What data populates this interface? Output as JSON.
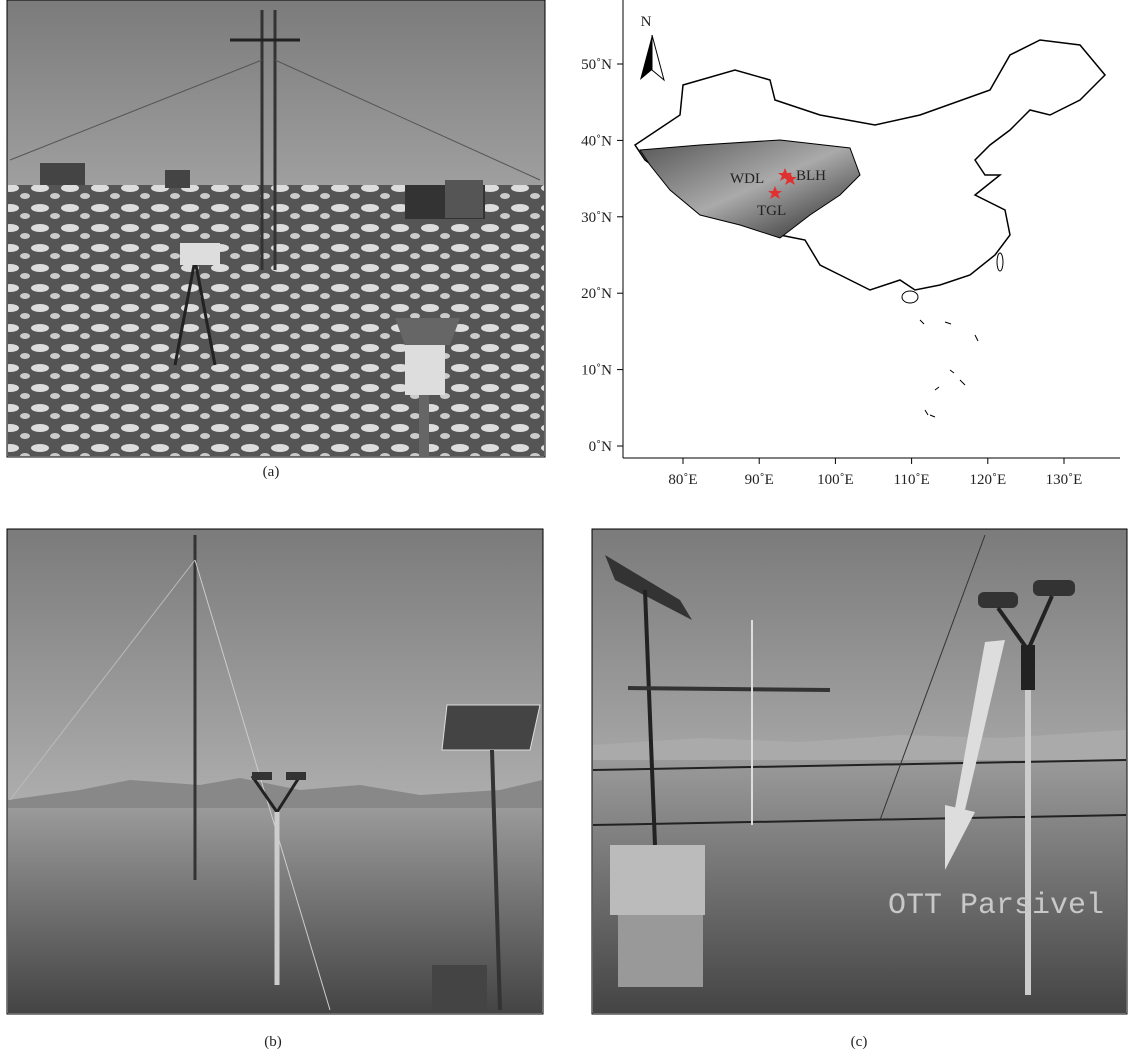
{
  "panels": {
    "a": "(a)",
    "b": "(b)",
    "c": "(c)"
  },
  "map": {
    "north": "N",
    "yticks": [
      "50˚N",
      "40˚N",
      "30˚N",
      "20˚N",
      "10˚N",
      "0˚N"
    ],
    "xticks": [
      "80˚E",
      "90˚E",
      "100˚E",
      "110˚E",
      "120˚E",
      "130˚E"
    ],
    "sites": [
      "WDL",
      "BLH",
      "TGL"
    ]
  },
  "photo_c_annotation": "OTT Parsivel"
}
